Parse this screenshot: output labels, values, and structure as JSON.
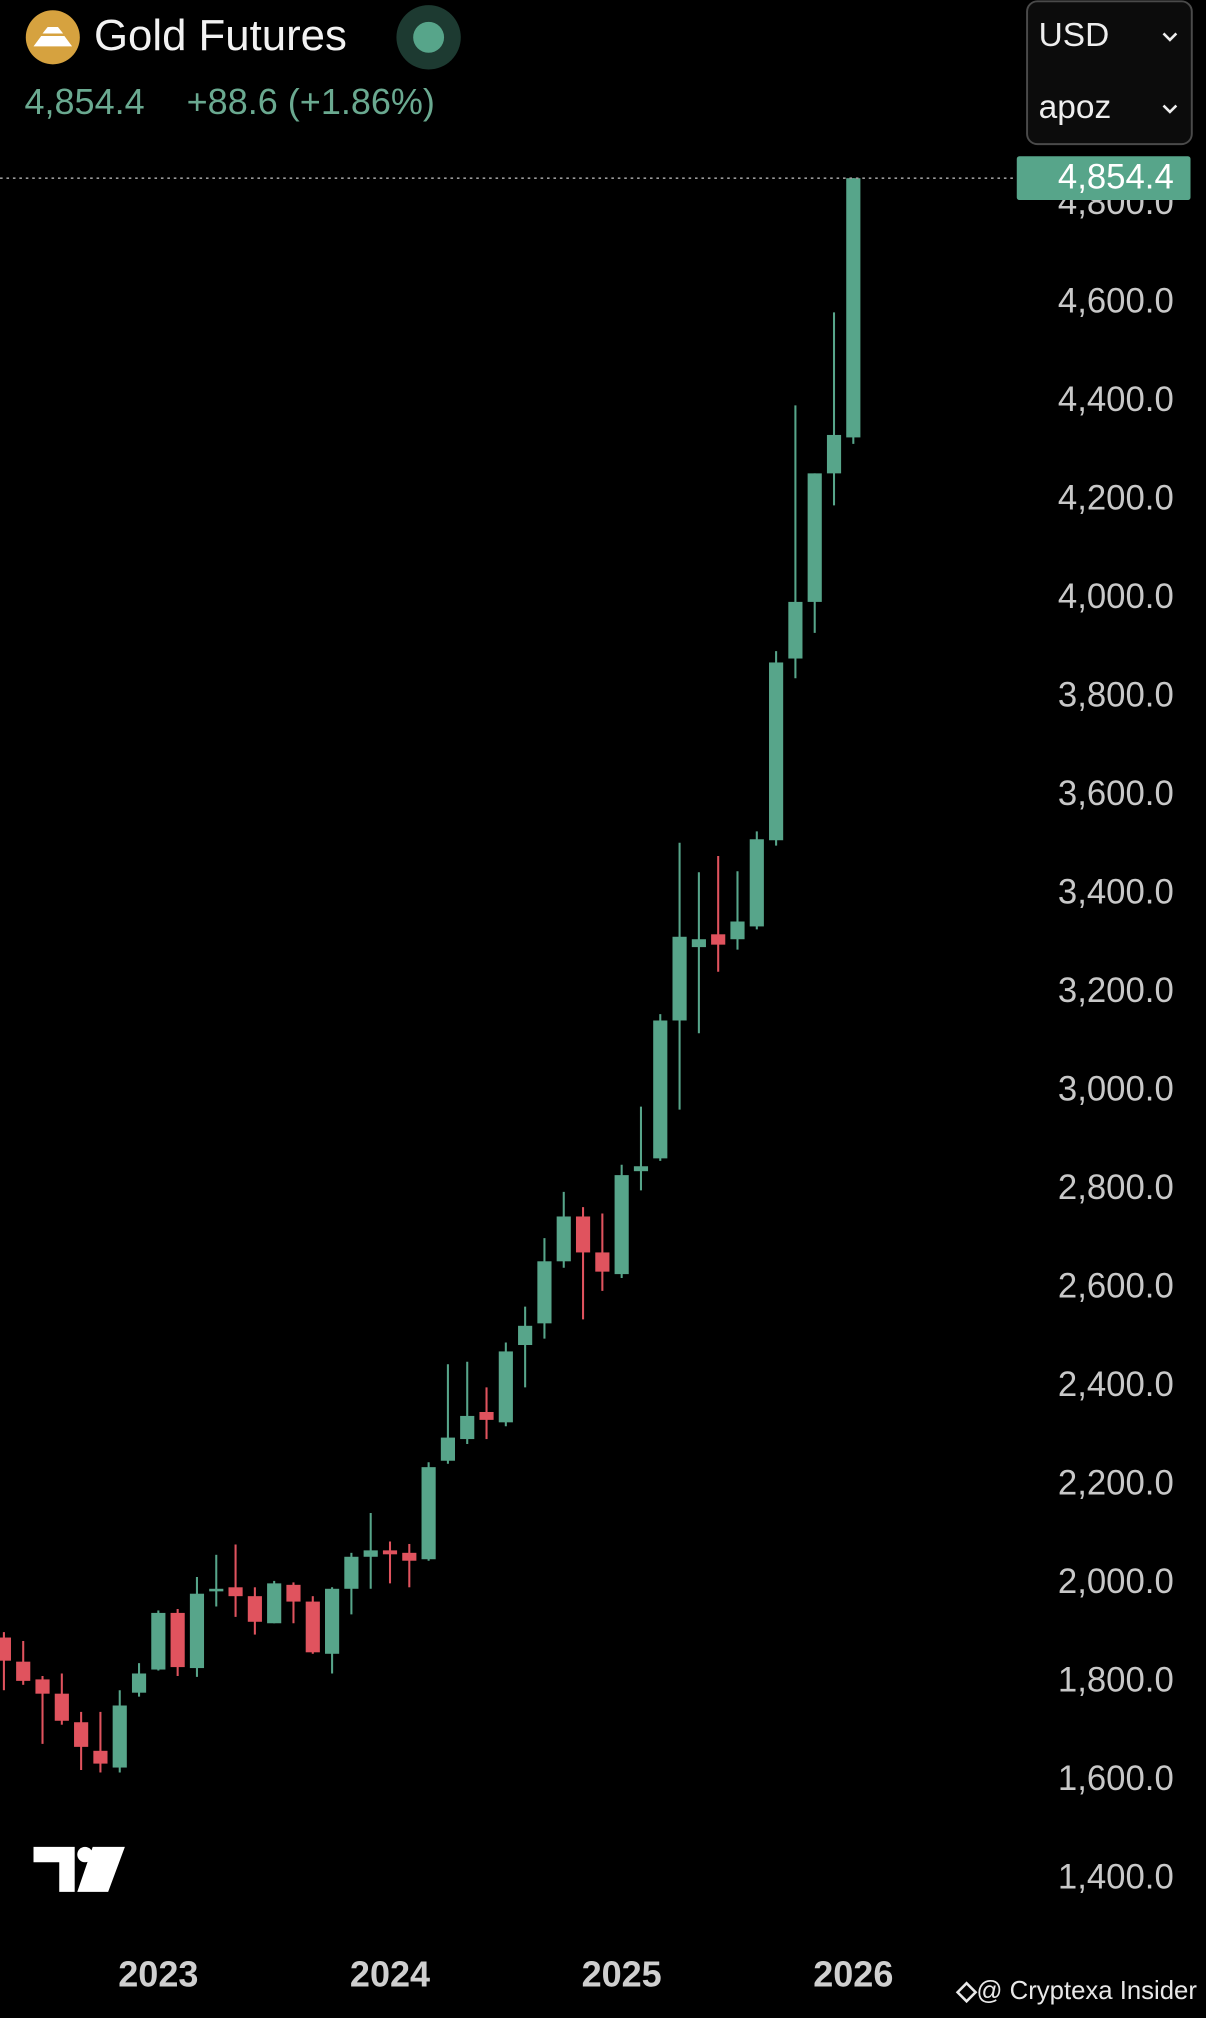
{
  "header": {
    "title": "Gold Futures",
    "change": "+88.6 (+1.86%)",
    "currency": "USD",
    "second_select": "apoz"
  },
  "watermark": "@ Cryptexa Insider",
  "chart_data": {
    "type": "candlestick",
    "categories": [
      null,
      null,
      null,
      null,
      null,
      null,
      null,
      null,
      "2023",
      null,
      null,
      null,
      null,
      null,
      null,
      null,
      null,
      null,
      null,
      null,
      "2024",
      null,
      null,
      null,
      null,
      null,
      null,
      null,
      null,
      null,
      null,
      null,
      "2025",
      null,
      null,
      null,
      null,
      null,
      null,
      null,
      null,
      null,
      null,
      null,
      "2026"
    ],
    "open": [
      1891,
      1842,
      1806,
      1777,
      1719,
      1661,
      1627,
      1779,
      1826,
      1941,
      1829,
      1985,
      1993,
      1975,
      1920,
      1998,
      1964,
      1858,
      1990,
      2055,
      2068,
      2063,
      2050,
      2250,
      2294,
      2349,
      2328,
      2485,
      2529,
      2655,
      2746,
      2673,
      2629,
      2838,
      2864,
      3144,
      3293,
      3319,
      3309,
      3335,
      3510,
      3879,
      3994,
      4255,
      4328
    ],
    "high": [
      1902,
      1884,
      1813,
      1818,
      1740,
      1740,
      1784,
      1839,
      1946,
      1949,
      2014,
      2059,
      2080,
      1993,
      2006,
      2003,
      1975,
      1993,
      2063,
      2144,
      2086,
      2081,
      2247,
      2446,
      2451,
      2399,
      2490,
      2563,
      2702,
      2796,
      2765,
      2752,
      2851,
      2969,
      3157,
      3505,
      3445,
      3478,
      3447,
      3528,
      3894,
      4393,
      4255,
      4582,
      4854.4
    ],
    "low": [
      1784,
      1795,
      1675,
      1714,
      1622,
      1617,
      1617,
      1771,
      1824,
      1813,
      1811,
      1954,
      1933,
      1897,
      1920,
      1920,
      1858,
      1818,
      1938,
      1990,
      2001,
      1993,
      2047,
      2244,
      2284,
      2294,
      2320,
      2399,
      2498,
      2642,
      2537,
      2595,
      2621,
      2799,
      2859,
      2963,
      3118,
      3243,
      3288,
      3329,
      3499,
      3839,
      3931,
      4190,
      4315
    ],
    "close": [
      1844,
      1803,
      1777,
      1722,
      1669,
      1635,
      1753,
      1818,
      1941,
      1831,
      1980,
      1990,
      1975,
      1923,
      2001,
      1964,
      1861,
      1990,
      2055,
      2068,
      2060,
      2047,
      2237,
      2297,
      2341,
      2333,
      2472,
      2524,
      2655,
      2746,
      2673,
      2634,
      2830,
      2848,
      3144,
      3314,
      3309,
      3298,
      3345,
      3512,
      3871,
      3994,
      4255,
      4333,
      4854.4
    ],
    "up_color": "#57a58a",
    "down_color": "#e0535e",
    "last_price": {
      "value": 4854.4,
      "label": "4,854.4"
    },
    "ylim": [
      1270,
      4900
    ],
    "yticks": [
      {
        "value": 1400,
        "label": "1,400.0"
      },
      {
        "value": 1600,
        "label": "1,600.0"
      },
      {
        "value": 1800,
        "label": "1,800.0"
      },
      {
        "value": 2000,
        "label": "2,000.0"
      },
      {
        "value": 2200,
        "label": "2,200.0"
      },
      {
        "value": 2400,
        "label": "2,400.0"
      },
      {
        "value": 2600,
        "label": "2,600.0"
      },
      {
        "value": 2800,
        "label": "2,800.0"
      },
      {
        "value": 3000,
        "label": "3,000.0"
      },
      {
        "value": 3200,
        "label": "3,200.0"
      },
      {
        "value": 3400,
        "label": "3,400.0"
      },
      {
        "value": 3600,
        "label": "3,600.0"
      },
      {
        "value": 3800,
        "label": "3,800.0"
      },
      {
        "value": 4000,
        "label": "4,000.0"
      },
      {
        "value": 4200,
        "label": "4,200.0"
      },
      {
        "value": 4400,
        "label": "4,400.0"
      },
      {
        "value": 4600,
        "label": "4,600.0"
      },
      {
        "value": 4800,
        "label": "4,800.0"
      }
    ],
    "grid": false
  }
}
